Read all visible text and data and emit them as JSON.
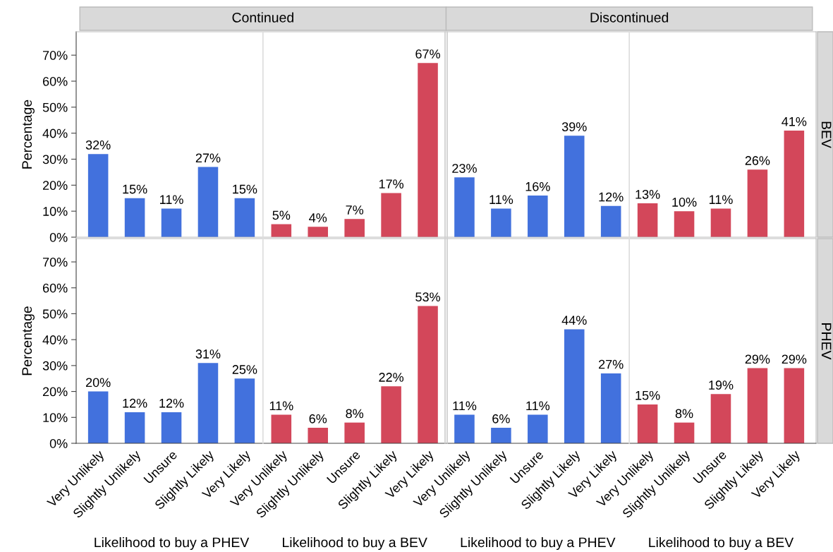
{
  "chart_data": [
    {
      "type": "bar",
      "ylabel": "Percentage",
      "y2label": "BEV",
      "annotations": [
        "Continued",
        "Discontinued"
      ],
      "categories": [
        null,
        null,
        null,
        null,
        null,
        null,
        null,
        null,
        null,
        null,
        null,
        null,
        null,
        null,
        null,
        null,
        null,
        null,
        null,
        null
      ],
      "values": [
        32,
        15,
        11,
        27,
        15,
        5,
        4,
        7,
        17,
        67,
        23,
        11,
        16,
        39,
        12,
        13,
        10,
        11,
        26,
        41
      ],
      "value_labels": [
        "32%",
        "15%",
        "11%",
        "27%",
        "15%",
        "5%",
        "4%",
        "7%",
        "17%",
        "67%",
        "23%",
        "11%",
        "16%",
        "39%",
        "12%",
        "13%",
        "10%",
        "11%",
        "26%",
        "41%"
      ],
      "colors": [
        "#4271dd",
        "#4271dd",
        "#4271dd",
        "#4271dd",
        "#4271dd",
        "#d3475a",
        "#d3475a",
        "#d3475a",
        "#d3475a",
        "#d3475a",
        "#4271dd",
        "#4271dd",
        "#4271dd",
        "#4271dd",
        "#4271dd",
        "#d3475a",
        "#d3475a",
        "#d3475a",
        "#d3475a",
        "#d3475a"
      ],
      "ylim": [
        0,
        79
      ],
      "yticks": [
        {
          "value": 0,
          "label": "0%"
        },
        {
          "value": 10,
          "label": "10%"
        },
        {
          "value": 20,
          "label": "20%"
        },
        {
          "value": 30,
          "label": "30%"
        },
        {
          "value": 40,
          "label": "40%"
        },
        {
          "value": 50,
          "label": "50%"
        },
        {
          "value": 60,
          "label": "60%"
        },
        {
          "value": 70,
          "label": "70%"
        }
      ],
      "tick_labels": "y"
    },
    {
      "type": "bar",
      "ylabel": "Percentage",
      "y2label": "PHEV",
      "annotations": [
        "Likelihood to buy a PHEV",
        "Likelihood to buy a BEV",
        "Likelihood to buy a PHEV",
        "Likelihood to buy a BEV"
      ],
      "categories": [
        "Very Unlikely",
        "Slightly Unlikely",
        "Unsure",
        "Slightly Likely",
        "Very Likely",
        "Very Unlikely",
        "Slightly Unlikely",
        "Unsure",
        "Slightly Likely",
        "Very Likely",
        "Very Unlikely",
        "Slightly Unlikely",
        "Unsure",
        "Slightly Likely",
        "Very Likely",
        "Very Unlikely",
        "Slightly Unlikely",
        "Unsure",
        "Slightly Likely",
        "Very Likely"
      ],
      "values": [
        20,
        12,
        12,
        31,
        25,
        11,
        6,
        8,
        22,
        53,
        11,
        6,
        11,
        44,
        27,
        15,
        8,
        19,
        29,
        29
      ],
      "value_labels": [
        "20%",
        "12%",
        "12%",
        "31%",
        "25%",
        "11%",
        "6%",
        "8%",
        "22%",
        "53%",
        "11%",
        "6%",
        "11%",
        "44%",
        "27%",
        "15%",
        "8%",
        "19%",
        "29%",
        "29%"
      ],
      "colors": [
        "#4271dd",
        "#4271dd",
        "#4271dd",
        "#4271dd",
        "#4271dd",
        "#d3475a",
        "#d3475a",
        "#d3475a",
        "#d3475a",
        "#d3475a",
        "#4271dd",
        "#4271dd",
        "#4271dd",
        "#4271dd",
        "#4271dd",
        "#d3475a",
        "#d3475a",
        "#d3475a",
        "#d3475a",
        "#d3475a"
      ],
      "ylim": [
        0,
        79
      ],
      "yticks": [
        {
          "value": 0,
          "label": "0%"
        },
        {
          "value": 10,
          "label": "10%"
        },
        {
          "value": 20,
          "label": "20%"
        },
        {
          "value": 30,
          "label": "30%"
        },
        {
          "value": 40,
          "label": "40%"
        },
        {
          "value": 50,
          "label": "50%"
        },
        {
          "value": 60,
          "label": "60%"
        },
        {
          "value": 70,
          "label": "70%"
        }
      ]
    }
  ]
}
